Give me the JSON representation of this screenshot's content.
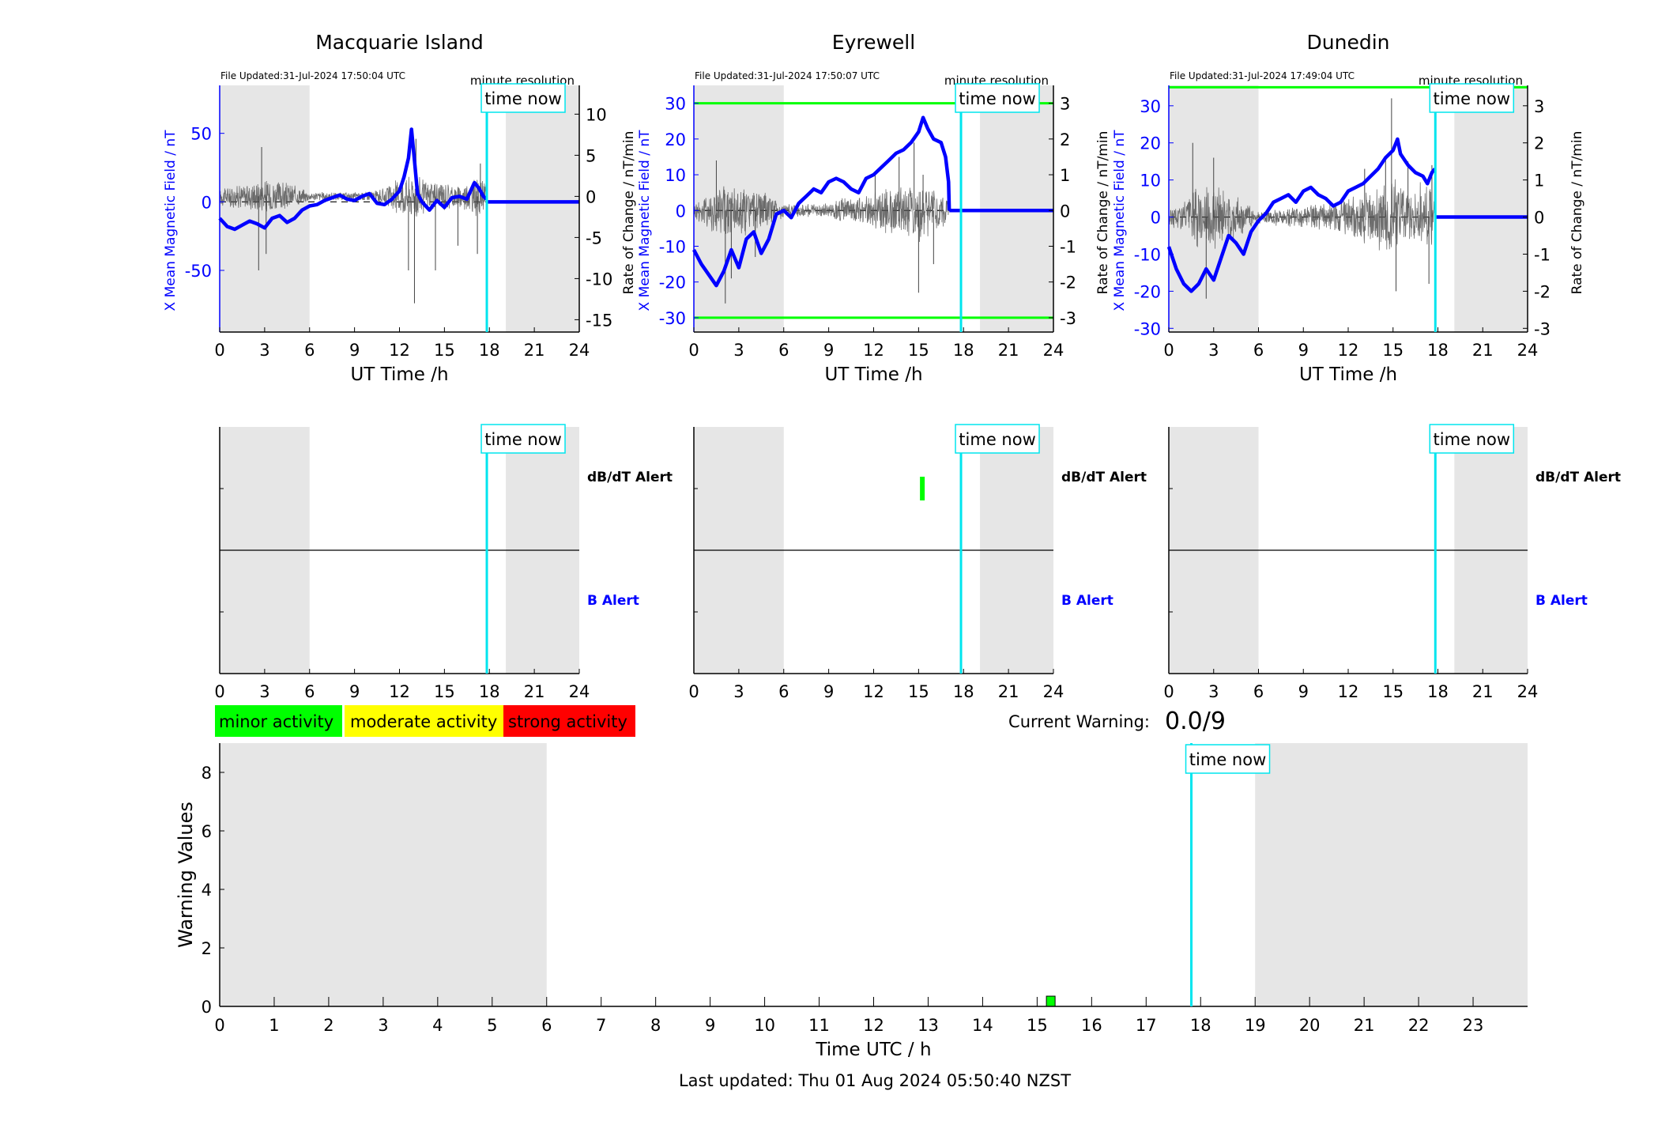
{
  "footer": {
    "last_updated": "Last updated: Thu 01 Aug 2024 05:50:40 NZST"
  },
  "legend": {
    "items": [
      {
        "label": "minor activity",
        "color": "#00ff00"
      },
      {
        "label": "moderate activity",
        "color": "#ffff00"
      },
      {
        "label": "strong activity",
        "color": "#ff0000"
      }
    ]
  },
  "current_warning": {
    "label": "Current Warning:",
    "value": "0.0/9"
  },
  "time_now_label": "time now",
  "colors": {
    "x_field": "#0000ff",
    "rate": "#000000",
    "time_now": "#00e5ee",
    "threshold": "#00ff00",
    "night_shade": "#e6e6e6",
    "b_alert": "#0000ff",
    "dbdt_alert": "#000000"
  },
  "chart_data": [
    {
      "type": "line",
      "title": "Macquarie Island",
      "file_updated": "File Updated:31-Jul-2024 17:50:04 UTC",
      "resolution_note": "minute resolution",
      "xlabel": "UT Time /h",
      "ylabel_left": "X Mean Magnetic Field / nT",
      "ylabel_right": "Rate of Change / nT/min",
      "xlim": [
        0,
        24
      ],
      "x_ticks": [
        0,
        3,
        6,
        9,
        12,
        15,
        18,
        21,
        24
      ],
      "ylim_left": [
        -95,
        85
      ],
      "y_ticks_left": [
        -50,
        0,
        50
      ],
      "ylim_right": [
        -16.5,
        13.5
      ],
      "y_ticks_right": [
        -15,
        -10,
        -5,
        0,
        5,
        10
      ],
      "threshold_left": null,
      "time_now": 17.83,
      "night_shading": [
        [
          0,
          6
        ],
        [
          19.1,
          24
        ]
      ],
      "series": [
        {
          "name": "X Mean Magnetic Field",
          "axis": "left",
          "x": [
            0,
            0.5,
            1,
            1.5,
            2,
            2.5,
            3,
            3.5,
            4,
            4.5,
            5,
            5.5,
            6,
            6.5,
            7,
            7.5,
            8,
            8.5,
            9,
            9.5,
            10,
            10.5,
            11,
            11.5,
            12,
            12.3,
            12.6,
            12.8,
            13,
            13.2,
            13.5,
            14,
            14.5,
            15,
            15.5,
            16,
            16.5,
            17,
            17.3,
            17.6,
            17.8
          ],
          "y": [
            -12,
            -18,
            -20,
            -17,
            -14,
            -16,
            -19,
            -12,
            -10,
            -15,
            -12,
            -6,
            -3,
            -2,
            1,
            3,
            5,
            2,
            1,
            4,
            6,
            -1,
            -2,
            2,
            8,
            18,
            32,
            53,
            30,
            6,
            0,
            -6,
            1,
            -4,
            3,
            4,
            2,
            14,
            10,
            4,
            2
          ]
        },
        {
          "name": "Rate of Change",
          "axis": "right",
          "noise": {
            "amplitude": [
              [
                0,
                1.2
              ],
              [
                2,
                1.8
              ],
              [
                3,
                2.5
              ],
              [
                5,
                1.5
              ],
              [
                6,
                0.6
              ],
              [
                9,
                0.5
              ],
              [
                11,
                1.0
              ],
              [
                12,
                2.5
              ],
              [
                13,
                3.0
              ],
              [
                14,
                2.0
              ],
              [
                15,
                2.0
              ],
              [
                16,
                1.5
              ],
              [
                17,
                2.5
              ],
              [
                17.8,
                2.0
              ]
            ],
            "end": 17.8
          },
          "spikes": [
            [
              2.6,
              -9
            ],
            [
              2.8,
              6
            ],
            [
              3.1,
              -7
            ],
            [
              12.6,
              -9
            ],
            [
              13.0,
              -13
            ],
            [
              13.1,
              7
            ],
            [
              14.4,
              -9
            ],
            [
              15.9,
              -6
            ],
            [
              17.2,
              -7
            ],
            [
              17.4,
              4
            ]
          ]
        }
      ]
    },
    {
      "type": "line",
      "title": "Eyrewell",
      "file_updated": "File Updated:31-Jul-2024 17:50:07 UTC",
      "resolution_note": "minute resolution",
      "xlabel": "UT Time /h",
      "ylabel_left": "X Mean Magnetic Field / nT",
      "ylabel_right": "Rate of Change / nT/min",
      "xlim": [
        0,
        24
      ],
      "x_ticks": [
        0,
        3,
        6,
        9,
        12,
        15,
        18,
        21,
        24
      ],
      "ylim_left": [
        -34,
        35
      ],
      "y_ticks_left": [
        -30,
        -20,
        -10,
        0,
        10,
        20,
        30
      ],
      "ylim_right": [
        -3.4,
        3.5
      ],
      "y_ticks_right": [
        -3,
        -2,
        -1,
        0,
        1,
        2,
        3
      ],
      "threshold_left": [
        30,
        -30
      ],
      "time_now": 17.83,
      "night_shading": [
        [
          0,
          6
        ],
        [
          19.1,
          24
        ]
      ],
      "series": [
        {
          "name": "X Mean Magnetic Field",
          "axis": "left",
          "x": [
            0,
            0.5,
            1,
            1.5,
            2,
            2.5,
            3,
            3.5,
            4,
            4.5,
            5,
            5.5,
            6,
            6.5,
            7,
            7.5,
            8,
            8.5,
            9,
            9.5,
            10,
            10.5,
            11,
            11.5,
            12,
            12.5,
            13,
            13.5,
            14,
            14.5,
            15,
            15.3,
            15.6,
            16,
            16.5,
            16.8,
            17.0,
            17.05
          ],
          "y": [
            -11,
            -15,
            -18,
            -21,
            -17,
            -11,
            -16,
            -8,
            -6,
            -12,
            -8,
            -1,
            0,
            -2,
            2,
            4,
            6,
            5,
            8,
            9,
            8,
            6,
            5,
            9,
            10,
            12,
            14,
            16,
            17,
            19,
            22,
            26,
            23,
            20,
            19,
            15,
            8,
            0
          ]
        },
        {
          "name": "Rate of Change",
          "axis": "right",
          "noise": {
            "amplitude": [
              [
                0,
                0.3
              ],
              [
                1,
                0.6
              ],
              [
                2,
                0.9
              ],
              [
                3,
                0.8
              ],
              [
                5,
                0.5
              ],
              [
                6,
                0.2
              ],
              [
                9,
                0.2
              ],
              [
                10,
                0.4
              ],
              [
                11,
                0.4
              ],
              [
                12,
                0.6
              ],
              [
                13,
                0.7
              ],
              [
                14,
                0.9
              ],
              [
                15,
                1.0
              ],
              [
                16,
                0.7
              ],
              [
                17,
                0.4
              ],
              [
                17.1,
                0
              ]
            ],
            "end": 17.0
          },
          "spikes": [
            [
              1.5,
              1.4
            ],
            [
              2.1,
              -2.6
            ],
            [
              2.5,
              -1.9
            ],
            [
              4.1,
              -1.3
            ],
            [
              12.1,
              1.0
            ],
            [
              13.7,
              1.5
            ],
            [
              14.7,
              1.9
            ],
            [
              15.0,
              -2.3
            ],
            [
              15.3,
              1.0
            ],
            [
              16.0,
              -1.5
            ]
          ]
        }
      ]
    },
    {
      "type": "line",
      "title": "Dunedin",
      "file_updated": "File Updated:31-Jul-2024 17:49:04 UTC",
      "resolution_note": "minute resolution",
      "xlabel": "UT Time /h",
      "ylabel_left": "X Mean Magnetic Field / nT",
      "ylabel_right": "Rate of Change / nT/min",
      "xlim": [
        0,
        24
      ],
      "x_ticks": [
        0,
        3,
        6,
        9,
        12,
        15,
        18,
        21,
        24
      ],
      "ylim_left": [
        -31,
        35.5
      ],
      "y_ticks_left": [
        -30,
        -20,
        -10,
        0,
        10,
        20,
        30
      ],
      "ylim_right": [
        -3.1,
        3.55
      ],
      "y_ticks_right": [
        -3,
        -2,
        -1,
        0,
        1,
        2,
        3
      ],
      "threshold_left": [
        35
      ],
      "time_now": 17.83,
      "night_shading": [
        [
          0,
          6
        ],
        [
          19.1,
          24
        ]
      ],
      "series": [
        {
          "name": "X Mean Magnetic Field",
          "axis": "left",
          "x": [
            0,
            0.5,
            1,
            1.5,
            2,
            2.5,
            3,
            3.5,
            4,
            4.5,
            5,
            5.5,
            6,
            6.5,
            7,
            7.5,
            8,
            8.5,
            9,
            9.5,
            10,
            10.5,
            11,
            11.5,
            12,
            12.5,
            13,
            13.5,
            14,
            14.5,
            15,
            15.3,
            15.5,
            16,
            16.5,
            17,
            17.3,
            17.6,
            17.8
          ],
          "y": [
            -8,
            -14,
            -18,
            -20,
            -18,
            -14,
            -17,
            -11,
            -5,
            -7,
            -10,
            -4,
            -1,
            1,
            4,
            5,
            6,
            4,
            7,
            8,
            6,
            5,
            3,
            4,
            7,
            8,
            9,
            11,
            13,
            16,
            18,
            21,
            17,
            14,
            12,
            11,
            9,
            12,
            13
          ]
        },
        {
          "name": "Rate of Change",
          "axis": "right",
          "noise": {
            "amplitude": [
              [
                0,
                0.3
              ],
              [
                1,
                0.5
              ],
              [
                2,
                0.9
              ],
              [
                3,
                0.9
              ],
              [
                5,
                0.5
              ],
              [
                6,
                0.2
              ],
              [
                9,
                0.3
              ],
              [
                10,
                0.4
              ],
              [
                11,
                0.4
              ],
              [
                12,
                0.6
              ],
              [
                13,
                0.8
              ],
              [
                14,
                0.9
              ],
              [
                15,
                1.1
              ],
              [
                16,
                0.8
              ],
              [
                17,
                1.0
              ],
              [
                17.8,
                1.0
              ]
            ],
            "end": 17.8
          },
          "spikes": [
            [
              1.6,
              2.0
            ],
            [
              2.5,
              -2.2
            ],
            [
              3.0,
              1.6
            ],
            [
              13.1,
              1.3
            ],
            [
              14.5,
              1.6
            ],
            [
              14.9,
              3.2
            ],
            [
              15.2,
              -2.0
            ],
            [
              16.0,
              1.5
            ],
            [
              17.4,
              -1.8
            ],
            [
              17.6,
              1.4
            ]
          ]
        }
      ]
    },
    {
      "type": "bar",
      "title": "",
      "station": "Macquarie Island",
      "xlim": [
        0,
        24
      ],
      "x_ticks": [
        0,
        3,
        6,
        9,
        12,
        15,
        18,
        21,
        24
      ],
      "dbdt_label": "dB/dT Alert",
      "b_label": "B Alert",
      "time_now": 17.83,
      "night_shading": [
        [
          0,
          6
        ],
        [
          19.1,
          24
        ]
      ],
      "dbdt_alerts": [],
      "b_alerts": []
    },
    {
      "type": "bar",
      "title": "",
      "station": "Eyrewell",
      "xlim": [
        0,
        24
      ],
      "x_ticks": [
        0,
        3,
        6,
        9,
        12,
        15,
        18,
        21,
        24
      ],
      "dbdt_label": "dB/dT Alert",
      "b_label": "B Alert",
      "time_now": 17.83,
      "night_shading": [
        [
          0,
          6
        ],
        [
          19.1,
          24
        ]
      ],
      "dbdt_alerts": [
        {
          "x": 15.25,
          "level": "minor"
        }
      ],
      "b_alerts": []
    },
    {
      "type": "bar",
      "title": "",
      "station": "Dunedin",
      "xlim": [
        0,
        24
      ],
      "x_ticks": [
        0,
        3,
        6,
        9,
        12,
        15,
        18,
        21,
        24
      ],
      "dbdt_label": "dB/dT Alert",
      "b_label": "B Alert",
      "time_now": 17.83,
      "night_shading": [
        [
          0,
          6
        ],
        [
          19.1,
          24
        ]
      ],
      "dbdt_alerts": [],
      "b_alerts": []
    },
    {
      "type": "bar",
      "title": "",
      "xlabel": "Time UTC / h",
      "ylabel": "Warning Values",
      "xlim": [
        0,
        24
      ],
      "x_ticks": [
        0,
        1,
        2,
        3,
        4,
        5,
        6,
        7,
        8,
        9,
        10,
        11,
        12,
        13,
        14,
        15,
        16,
        17,
        18,
        19,
        20,
        21,
        22,
        23
      ],
      "ylim": [
        0,
        9
      ],
      "y_ticks": [
        0,
        2,
        4,
        6,
        8
      ],
      "time_now": 17.83,
      "night_shading": [
        [
          0,
          6
        ],
        [
          19.0,
          24
        ]
      ],
      "bars": [
        {
          "x": 15.25,
          "value": 0.35,
          "level": "minor"
        }
      ]
    }
  ]
}
